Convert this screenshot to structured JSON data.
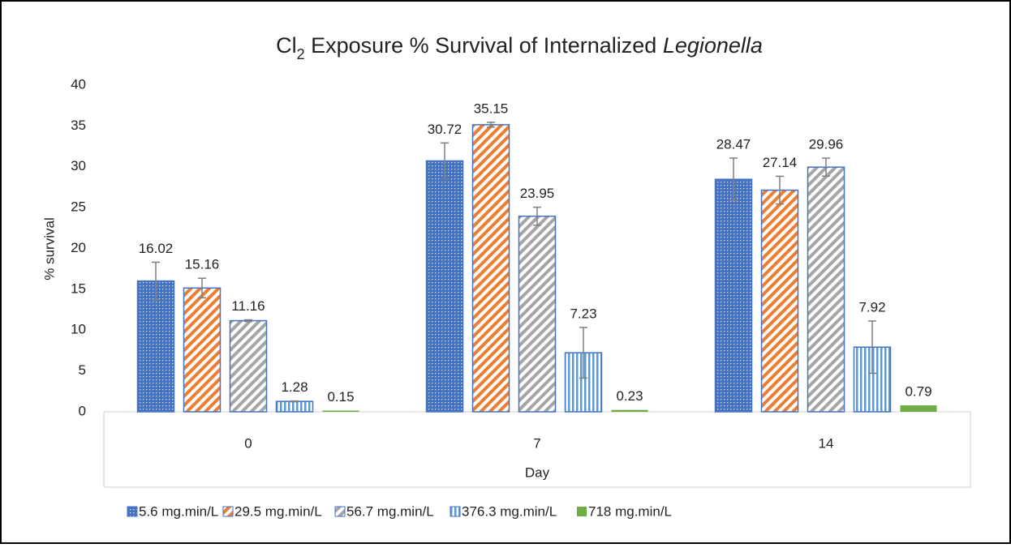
{
  "chart_data": {
    "type": "bar",
    "title": [
      "Cl",
      "2",
      " Exposure % Survival of Internalized ",
      "Legionella"
    ],
    "title_format": [
      "normal",
      "sub",
      "normal",
      "italic"
    ],
    "x_label": "Day",
    "y_label": "% survival",
    "categories": [
      "0",
      "7",
      "14"
    ],
    "series": [
      {
        "name": "5.6 mg.min/L",
        "color": "#4472c4",
        "pattern": "dots",
        "values": [
          16.02,
          30.72,
          28.47
        ],
        "errors": [
          2.3,
          2.2,
          2.6
        ]
      },
      {
        "name": "29.5 mg.min/L",
        "color": "#ed7d31",
        "pattern": "diagonal",
        "values": [
          15.16,
          35.15,
          27.14
        ],
        "errors": [
          1.2,
          0.3,
          1.7
        ]
      },
      {
        "name": "56.7 mg.min/L",
        "color": "#a5a5a5",
        "pattern": "diagonal",
        "values": [
          11.16,
          23.95,
          29.96
        ],
        "errors": [
          0.1,
          1.1,
          1.1
        ]
      },
      {
        "name": "376.3 mg.min/L",
        "color": "#5b9bd5",
        "pattern": "vertical",
        "values": [
          1.28,
          7.23,
          7.92
        ],
        "errors": [
          0.05,
          3.1,
          3.2
        ]
      },
      {
        "name": "718 mg.min/L",
        "color": "#70ad47",
        "pattern": "solid",
        "values": [
          0.15,
          0.23,
          0.79
        ],
        "errors": [
          0,
          0,
          0
        ]
      }
    ],
    "ylim": [
      0,
      40
    ],
    "yticks": [
      0,
      5,
      10,
      15,
      20,
      25,
      30,
      35,
      40
    ],
    "grid": false,
    "legend": "bottom"
  }
}
